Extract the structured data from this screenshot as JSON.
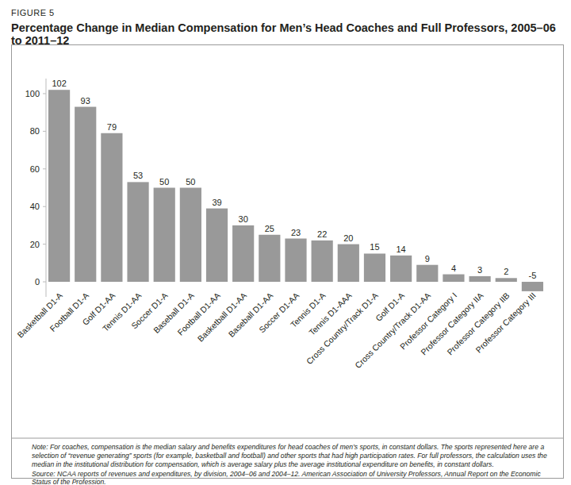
{
  "chart_data": {
    "type": "bar",
    "subtitle": "FIGURE 5",
    "title": "Percentage Change in Median Compensation for Men’s Head Coaches and Full Professors, 2005–06 to 2011–12",
    "categories": [
      "Basketball D1-A",
      "Football D1-A",
      "Golf D1-AA",
      "Tennis D1-AA",
      "Soccer D1-A",
      "Baseball D1-A",
      "Football D1-AA",
      "Basketball D1-AA",
      "Baseball D1-AA",
      "Soccer D1-AA",
      "Tennis D1-A",
      "Tennis D1-AAA",
      "Cross Country/Track D1-A",
      "Golf D1-A",
      "Cross Country/Track D1-AA",
      "Professor Category I",
      "Professor Category IIA",
      "Professor Category IIB",
      "Professor Category III"
    ],
    "values": [
      102,
      93,
      79,
      53,
      50,
      50,
      39,
      30,
      25,
      23,
      22,
      20,
      15,
      14,
      9,
      4,
      3,
      2,
      -5
    ],
    "color": "#999999",
    "ylim": [
      -8,
      108
    ],
    "yticks": [
      0,
      20,
      40,
      60,
      80,
      100
    ],
    "grid": false,
    "data_labels": true,
    "annotations": [
      "Note: For coaches, compensation is the median salary and benefits expenditures for head coaches of men’s sports, in constant dollars. The sports represented here are a selection of “revenue generating” sports (for example, basketball and football) and other sports that had high participation rates. For full professors, the calculation uses the median in the institutional distribution for compensation, which is average salary plus the average institutional expenditure on benefits, in constant dollars.",
      "Source: NCAA reports of revenues and expenditures, by division, 2004–06 and 2004–12. American Association of University Professors, Annual Report on the Economic Status of the Profession."
    ]
  }
}
